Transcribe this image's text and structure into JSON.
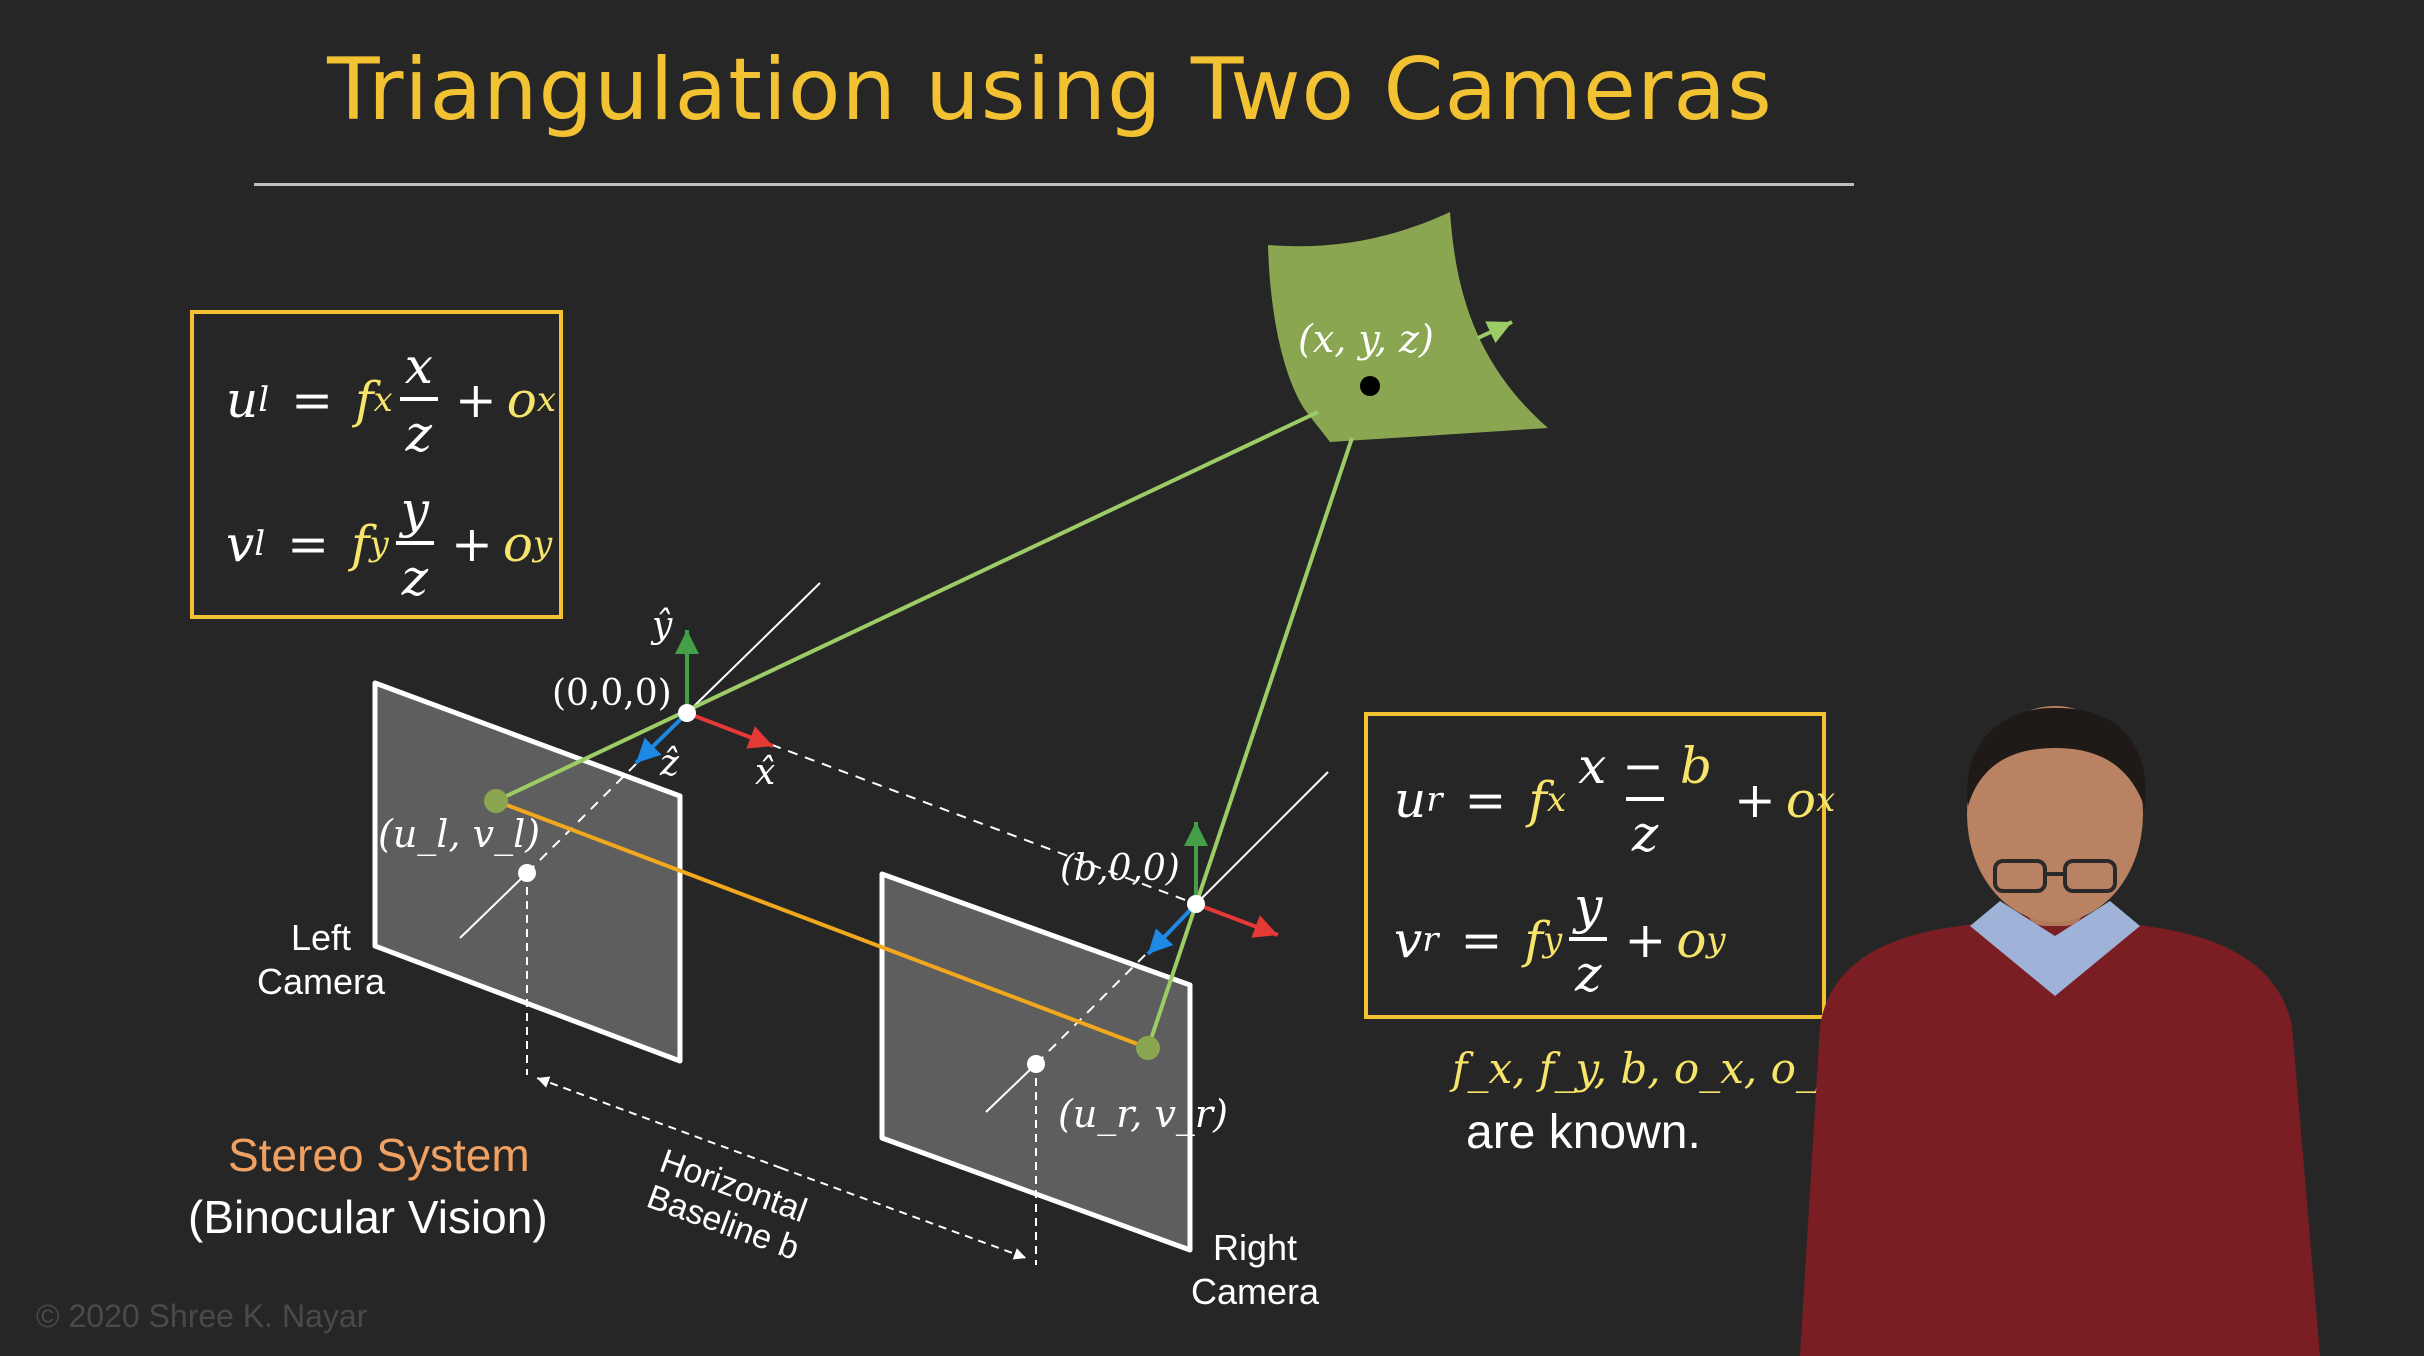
{
  "title": "Triangulation using Two Cameras",
  "left_equations": {
    "u_lhs": "u",
    "u_lhs_sub": "l",
    "eq1": "=",
    "u_f": "f",
    "u_f_sub": "x",
    "u_num": "x",
    "u_den": "z",
    "plus1": "+",
    "u_o": "o",
    "u_o_sub": "x",
    "v_lhs": "v",
    "v_lhs_sub": "l",
    "eq2": "=",
    "v_f": "f",
    "v_f_sub": "y",
    "v_num": "y",
    "v_den": "z",
    "plus2": "+",
    "v_o": "o",
    "v_o_sub": "y"
  },
  "right_equations": {
    "u_lhs": "u",
    "u_lhs_sub": "r",
    "eq1": "=",
    "u_f": "f",
    "u_f_sub": "x",
    "u_num_a": "x − ",
    "u_num_b": "b",
    "u_den": "z",
    "plus1": "+",
    "u_o": "o",
    "u_o_sub": "x",
    "v_lhs": "v",
    "v_lhs_sub": "r",
    "eq2": "=",
    "v_f": "f",
    "v_f_sub": "y",
    "v_num": "y",
    "v_den": "z",
    "plus2": "+",
    "v_o": "o",
    "v_o_sub": "y"
  },
  "known_params": "f_x, f_y, b, o_x, o_y",
  "known_text": "are known.",
  "stereo_title": "Stereo System",
  "stereo_sub": "(Binocular Vision)",
  "left_camera": [
    "Left",
    "Camera"
  ],
  "right_camera": [
    "Right",
    "Camera"
  ],
  "baseline": [
    "Horizontal",
    "Baseline b"
  ],
  "point_label": "(x, y, z)",
  "origin_left": "(0,0,0)",
  "origin_right": "(b,0,0)",
  "image_point_left": "(u_l, v_l)",
  "image_point_right": "(u_r, v_r)",
  "axis_y": "ŷ",
  "axis_z": "ẑ",
  "axis_x": "x̂",
  "copyright": "© 2020 Shree K. Nayar",
  "colors": {
    "title": "#f2c232",
    "box_border": "#f2c232",
    "ray": "#9ccc65",
    "baseline_link": "#f2a81d",
    "stereo_label": "#f0a060",
    "axis_x": "#e53935",
    "axis_y": "#43a047",
    "axis_z": "#1e88e5",
    "surface": "#8aa650"
  }
}
